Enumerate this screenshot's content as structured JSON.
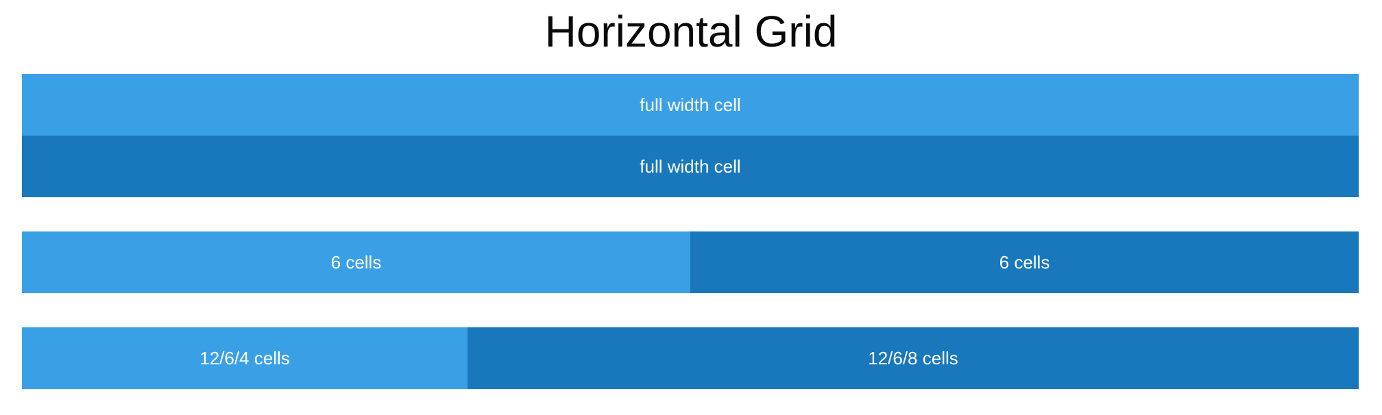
{
  "page": {
    "title": "Horizontal Grid"
  },
  "rows": [
    {
      "cells": [
        {
          "label": "full width cell"
        }
      ]
    },
    {
      "cells": [
        {
          "label": "full width cell"
        }
      ]
    },
    {
      "cells": [
        {
          "label": "6 cells"
        },
        {
          "label": "6 cells"
        }
      ]
    },
    {
      "cells": [
        {
          "label": "12/6/4 cells"
        },
        {
          "label": "12/6/8 cells"
        }
      ]
    }
  ],
  "colors": {
    "cell_light": "#3aa0e6",
    "cell_dark": "#1878bb",
    "cell_text": "#ffffff",
    "title_text": "#0a0a0a",
    "background": "#ffffff"
  }
}
